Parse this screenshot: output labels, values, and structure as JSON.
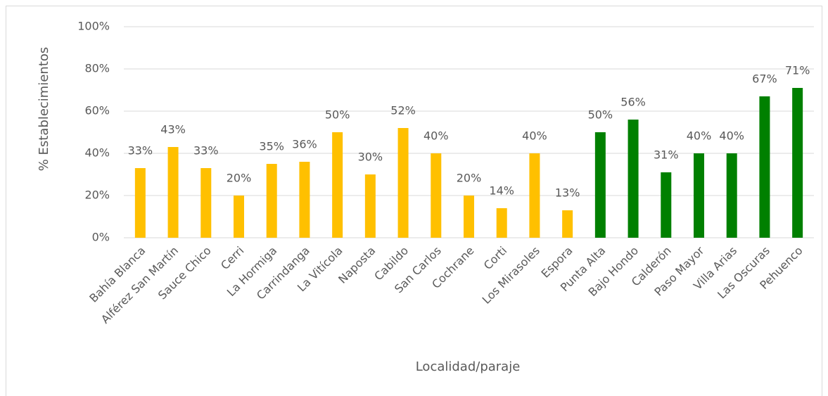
{
  "chart_data": {
    "type": "bar",
    "y_axis_label": "% Establecimientos",
    "x_axis_label": "Localidad/paraje",
    "categories": [
      "Bahía Blanca",
      "Alférez San Martín",
      "Sauce Chico",
      "Cerri",
      "La Hormiga",
      "Carrindanga",
      "La Vitícola",
      "Naposta",
      "Cabildo",
      "San Carlos",
      "Cochrane",
      "Corti",
      "Los Mirasoles",
      "Espora",
      "Punta Alta",
      "Bajo Hondo",
      "Calderón",
      "Paso Mayor",
      "Villa Arias",
      "Las Oscuras",
      "Pehuenco"
    ],
    "values": [
      33,
      43,
      33,
      20,
      35,
      36,
      50,
      30,
      52,
      40,
      20,
      14,
      40,
      13,
      50,
      56,
      31,
      40,
      40,
      67,
      71
    ],
    "value_labels": [
      "33%",
      "43%",
      "33%",
      "20%",
      "35%",
      "36%",
      "50%",
      "30%",
      "52%",
      "40%",
      "20%",
      "14%",
      "40%",
      "13%",
      "50%",
      "56%",
      "31%",
      "40%",
      "40%",
      "67%",
      "71%"
    ],
    "colors": [
      "#ffc000",
      "#ffc000",
      "#ffc000",
      "#ffc000",
      "#ffc000",
      "#ffc000",
      "#ffc000",
      "#ffc000",
      "#ffc000",
      "#ffc000",
      "#ffc000",
      "#ffc000",
      "#ffc000",
      "#ffc000",
      "#008000",
      "#008000",
      "#008000",
      "#008000",
      "#008000",
      "#008000",
      "#008000"
    ],
    "ylim": [
      0,
      100
    ],
    "yticks": [
      {
        "value": 0,
        "label": "0%"
      },
      {
        "value": 20,
        "label": "20%"
      },
      {
        "value": 40,
        "label": "40%"
      },
      {
        "value": 60,
        "label": "60%"
      },
      {
        "value": 80,
        "label": "80%"
      },
      {
        "value": 100,
        "label": "100%"
      }
    ],
    "grid": true
  }
}
